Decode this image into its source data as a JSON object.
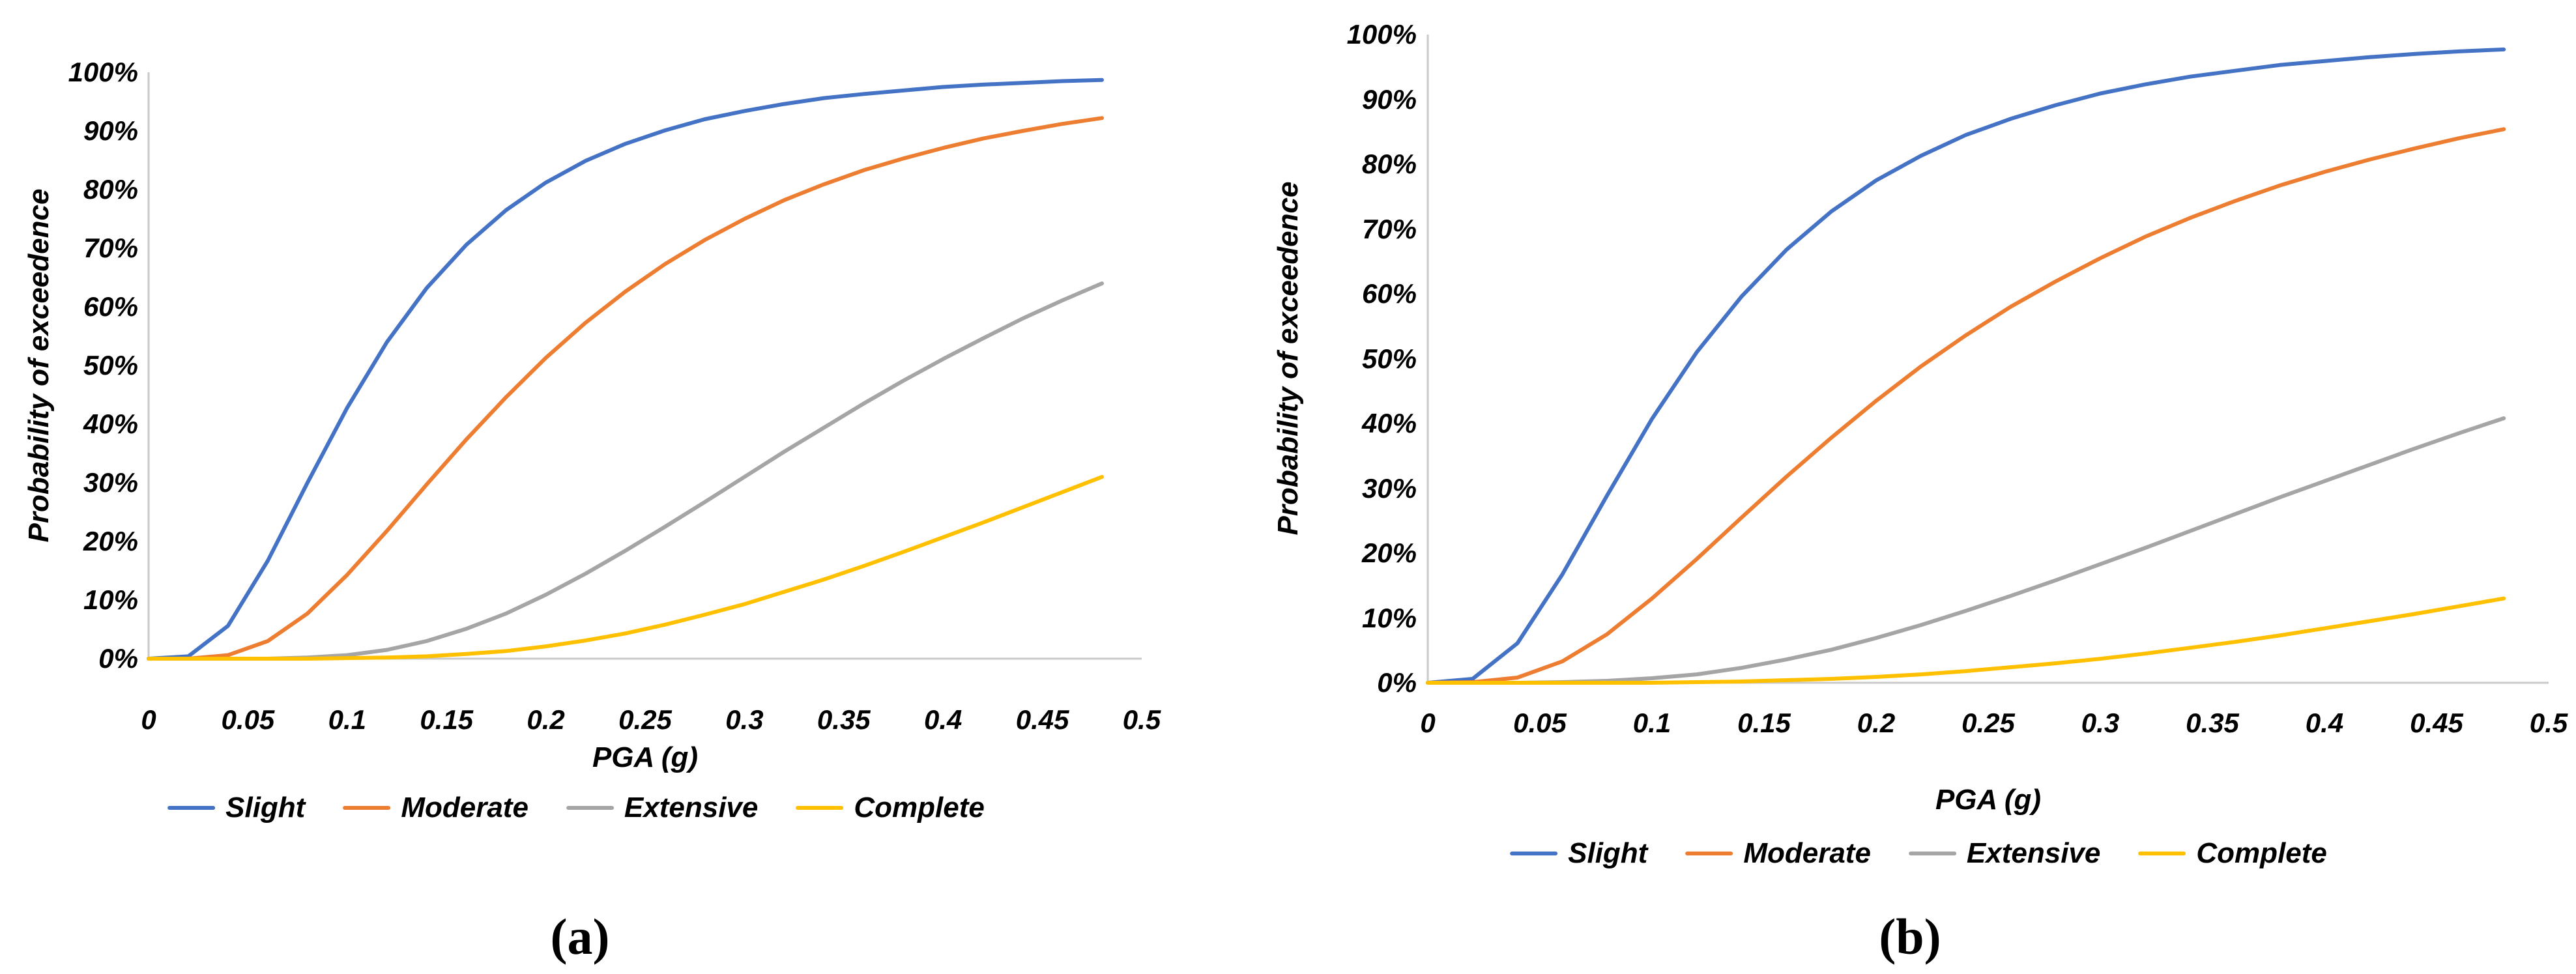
{
  "figure": {
    "background": "#ffffff"
  },
  "colors": {
    "slight": "#4472C4",
    "moderate": "#ED7D31",
    "extensive": "#A5A5A5",
    "complete": "#FFC000",
    "axis_line": "#C9C9C9",
    "text": "#000000"
  },
  "chart_data": [
    {
      "type": "line",
      "id": "a",
      "caption": "(a)",
      "title": "",
      "xlabel": "PGA (g)",
      "ylabel": "Probability of exceedence",
      "xlim": [
        0,
        0.5
      ],
      "ylim_pct": [
        0,
        100
      ],
      "grid": false,
      "legend_position": "bottom",
      "x_ticks": [
        "0",
        "0.05",
        "0.1",
        "0.15",
        "0.2",
        "0.25",
        "0.3",
        "0.35",
        "0.4",
        "0.45",
        "0.5"
      ],
      "y_ticks": [
        "0%",
        "10%",
        "20%",
        "30%",
        "40%",
        "50%",
        "60%",
        "70%",
        "80%",
        "90%",
        "100%"
      ],
      "x": [
        0,
        0.02,
        0.04,
        0.06,
        0.08,
        0.1,
        0.12,
        0.14,
        0.16,
        0.18,
        0.2,
        0.22,
        0.24,
        0.26,
        0.28,
        0.3,
        0.32,
        0.34,
        0.36,
        0.38,
        0.4,
        0.42,
        0.44,
        0.46,
        0.48
      ],
      "series": [
        {
          "name": "Slight",
          "color": "#4472C4",
          "y_pct": [
            0,
            0.4,
            5.6,
            16.7,
            30.0,
            42.8,
            54.0,
            63.2,
            70.6,
            76.5,
            81.2,
            84.9,
            87.8,
            90.1,
            92.0,
            93.4,
            94.6,
            95.6,
            96.3,
            96.9,
            97.5,
            97.9,
            98.2,
            98.5,
            98.7
          ]
        },
        {
          "name": "Moderate",
          "color": "#ED7D31",
          "y_pct": [
            0,
            0.0,
            0.6,
            3.0,
            7.7,
            14.3,
            21.8,
            29.7,
            37.4,
            44.6,
            51.3,
            57.3,
            62.6,
            67.3,
            71.4,
            75.0,
            78.2,
            80.9,
            83.3,
            85.3,
            87.1,
            88.7,
            90.0,
            91.2,
            92.2
          ]
        },
        {
          "name": "Extensive",
          "color": "#A5A5A5",
          "y_pct": [
            0,
            0.0,
            0.0,
            0.0,
            0.2,
            0.6,
            1.5,
            3.0,
            5.1,
            7.7,
            10.9,
            14.5,
            18.4,
            22.5,
            26.7,
            31.0,
            35.3,
            39.4,
            43.5,
            47.4,
            51.1,
            54.6,
            58.0,
            61.1,
            64.0
          ]
        },
        {
          "name": "Complete",
          "color": "#FFC000",
          "y_pct": [
            0,
            0.0,
            0.0,
            0.0,
            0.0,
            0.1,
            0.2,
            0.4,
            0.8,
            1.3,
            2.1,
            3.1,
            4.3,
            5.8,
            7.5,
            9.3,
            11.4,
            13.5,
            15.8,
            18.2,
            20.7,
            23.2,
            25.8,
            28.4,
            31.0
          ]
        }
      ]
    },
    {
      "type": "line",
      "id": "b",
      "caption": "(b)",
      "title": "",
      "xlabel": "PGA (g)",
      "ylabel": "Probability of exceedence",
      "xlim": [
        0,
        0.5
      ],
      "ylim_pct": [
        0,
        100
      ],
      "grid": false,
      "legend_position": "bottom",
      "x_ticks": [
        "0",
        "0.05",
        "0.1",
        "0.15",
        "0.2",
        "0.25",
        "0.3",
        "0.35",
        "0.4",
        "0.45",
        "0.5"
      ],
      "y_ticks": [
        "0%",
        "10%",
        "20%",
        "30%",
        "40%",
        "50%",
        "60%",
        "70%",
        "80%",
        "90%",
        "100%"
      ],
      "x": [
        0,
        0.02,
        0.04,
        0.06,
        0.08,
        0.1,
        0.12,
        0.14,
        0.16,
        0.18,
        0.2,
        0.22,
        0.24,
        0.26,
        0.28,
        0.3,
        0.32,
        0.34,
        0.36,
        0.38,
        0.4,
        0.42,
        0.44,
        0.46,
        0.48
      ],
      "series": [
        {
          "name": "Slight",
          "color": "#4472C4",
          "y_pct": [
            0,
            0.6,
            6.1,
            16.7,
            28.9,
            40.7,
            51.0,
            59.6,
            66.8,
            72.7,
            77.5,
            81.3,
            84.5,
            87.0,
            89.1,
            90.9,
            92.3,
            93.5,
            94.4,
            95.3,
            95.9,
            96.5,
            97.0,
            97.4,
            97.7
          ]
        },
        {
          "name": "Moderate",
          "color": "#ED7D31",
          "y_pct": [
            0,
            0.1,
            0.8,
            3.3,
            7.5,
            13.0,
            19.1,
            25.5,
            31.8,
            37.8,
            43.5,
            48.8,
            53.6,
            58.0,
            61.9,
            65.5,
            68.8,
            71.7,
            74.3,
            76.7,
            78.8,
            80.7,
            82.4,
            84.0,
            85.4
          ]
        },
        {
          "name": "Extensive",
          "color": "#A5A5A5",
          "y_pct": [
            0,
            0.0,
            0.0,
            0.1,
            0.3,
            0.7,
            1.3,
            2.3,
            3.6,
            5.1,
            6.9,
            8.9,
            11.1,
            13.4,
            15.8,
            18.3,
            20.8,
            23.4,
            26.0,
            28.6,
            31.1,
            33.6,
            36.1,
            38.5,
            40.8
          ]
        },
        {
          "name": "Complete",
          "color": "#FFC000",
          "y_pct": [
            0,
            0.0,
            0.0,
            0.0,
            0.0,
            0.0,
            0.1,
            0.2,
            0.4,
            0.6,
            0.9,
            1.3,
            1.8,
            2.4,
            3.0,
            3.7,
            4.5,
            5.4,
            6.3,
            7.3,
            8.4,
            9.5,
            10.6,
            11.8,
            13.0
          ]
        }
      ]
    }
  ]
}
